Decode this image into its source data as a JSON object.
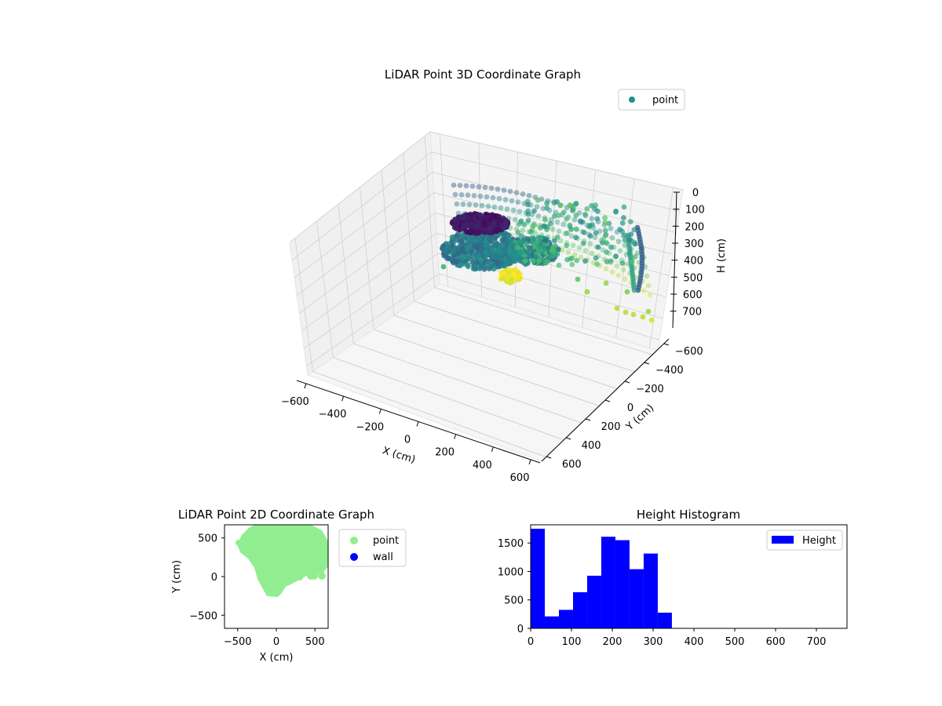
{
  "chart_data": [
    {
      "type": "scatter",
      "projection": "3d",
      "title": "LiDAR Point 3D Coordinate Graph",
      "xlabel": "X (cm)",
      "ylabel": "Y (cm)",
      "zlabel": "H (cm)",
      "xlim": [
        -650,
        650
      ],
      "ylim": [
        -650,
        650
      ],
      "zlim": [
        0,
        750
      ],
      "z_inverted": true,
      "xticks": [
        -600,
        -400,
        -200,
        0,
        200,
        400,
        600
      ],
      "yticks": [
        -600,
        -400,
        -200,
        0,
        200,
        400,
        600
      ],
      "zticks": [
        0,
        100,
        200,
        300,
        400,
        500,
        600,
        700
      ],
      "legend": {
        "position": "top-right",
        "entries": [
          {
            "label": "point",
            "color": "#21918c"
          }
        ]
      },
      "colormap": "viridis",
      "color_by": "height",
      "grid": true,
      "series": [
        {
          "name": "point"
        }
      ]
    },
    {
      "type": "scatter",
      "title": "LiDAR Point 2D Coordinate Graph",
      "xlabel": "X (cm)",
      "ylabel": "Y (cm)",
      "xlim": [
        -670,
        670
      ],
      "ylim": [
        -670,
        670
      ],
      "xticks": [
        -500,
        0,
        500
      ],
      "yticks": [
        -500,
        0,
        500
      ],
      "legend": {
        "position": "outside-right",
        "entries": [
          {
            "label": "point",
            "color": "#90ee90"
          },
          {
            "label": "wall",
            "color": "#0000ff"
          }
        ]
      },
      "grid": false,
      "series": [
        {
          "name": "point",
          "color": "#90ee90"
        },
        {
          "name": "wall",
          "color": "#0000ff"
        }
      ]
    },
    {
      "type": "bar",
      "subtype": "histogram",
      "title": "Height Histogram",
      "xlim": [
        0,
        775
      ],
      "ylim": [
        0,
        1820
      ],
      "xticks": [
        0,
        100,
        200,
        300,
        400,
        500,
        600,
        700
      ],
      "yticks": [
        0,
        500,
        1000,
        1500
      ],
      "bin_edges": [
        0,
        34.6,
        69.2,
        103.8,
        138.4,
        173,
        207.6,
        242.2,
        276.8,
        311.4,
        346
      ],
      "values": [
        1750,
        210,
        325,
        635,
        925,
        1610,
        1550,
        1040,
        1315,
        275
      ],
      "legend": {
        "position": "top-right",
        "entries": [
          {
            "label": "Height",
            "color": "#0000ff"
          }
        ]
      },
      "grid": false,
      "series": [
        {
          "name": "Height",
          "color": "#0000ff"
        }
      ]
    }
  ]
}
